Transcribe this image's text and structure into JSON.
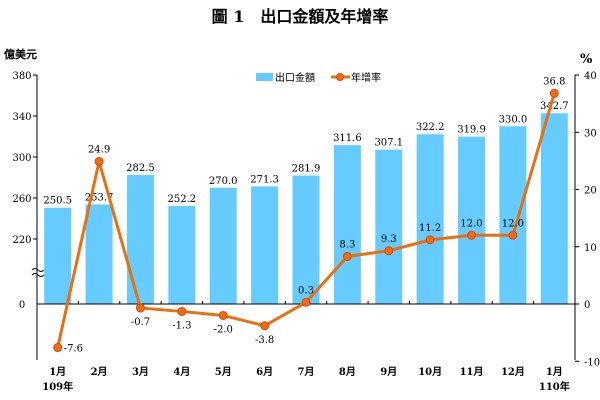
{
  "chart_data": {
    "type": "bar+line",
    "title": "圖 1　出口金額及年增率",
    "left_unit": "億美元",
    "right_unit": "%",
    "categories": [
      "1月",
      "2月",
      "3月",
      "4月",
      "5月",
      "6月",
      "7月",
      "8月",
      "9月",
      "10月",
      "11月",
      "12月",
      "1月"
    ],
    "year_labels": [
      "109年",
      "",
      "",
      "",
      "",
      "",
      "",
      "",
      "",
      "",
      "",
      "",
      "110年"
    ],
    "series": [
      {
        "name": "出口金額",
        "type": "bar",
        "axis": "left",
        "color": "#66ccff",
        "values": [
          250.5,
          253.7,
          282.5,
          252.2,
          270.0,
          271.3,
          281.9,
          311.6,
          307.1,
          322.2,
          319.9,
          330.0,
          342.7
        ]
      },
      {
        "name": "年增率",
        "type": "line",
        "axis": "right",
        "color": "#e8700f",
        "values": [
          -7.6,
          24.9,
          -0.7,
          -1.3,
          -2.0,
          -3.8,
          0.3,
          8.3,
          9.3,
          11.2,
          12.0,
          12.0,
          36.8
        ]
      }
    ],
    "left_ticks": [
      "380",
      "340",
      "300",
      "260",
      "220",
      "0"
    ],
    "left_axis_break": true,
    "right_ticks": [
      "40",
      "30",
      "20",
      "10",
      "0",
      "-10"
    ],
    "right_ylim": [
      -10,
      40
    ],
    "legend": "top-center",
    "grid": false
  }
}
